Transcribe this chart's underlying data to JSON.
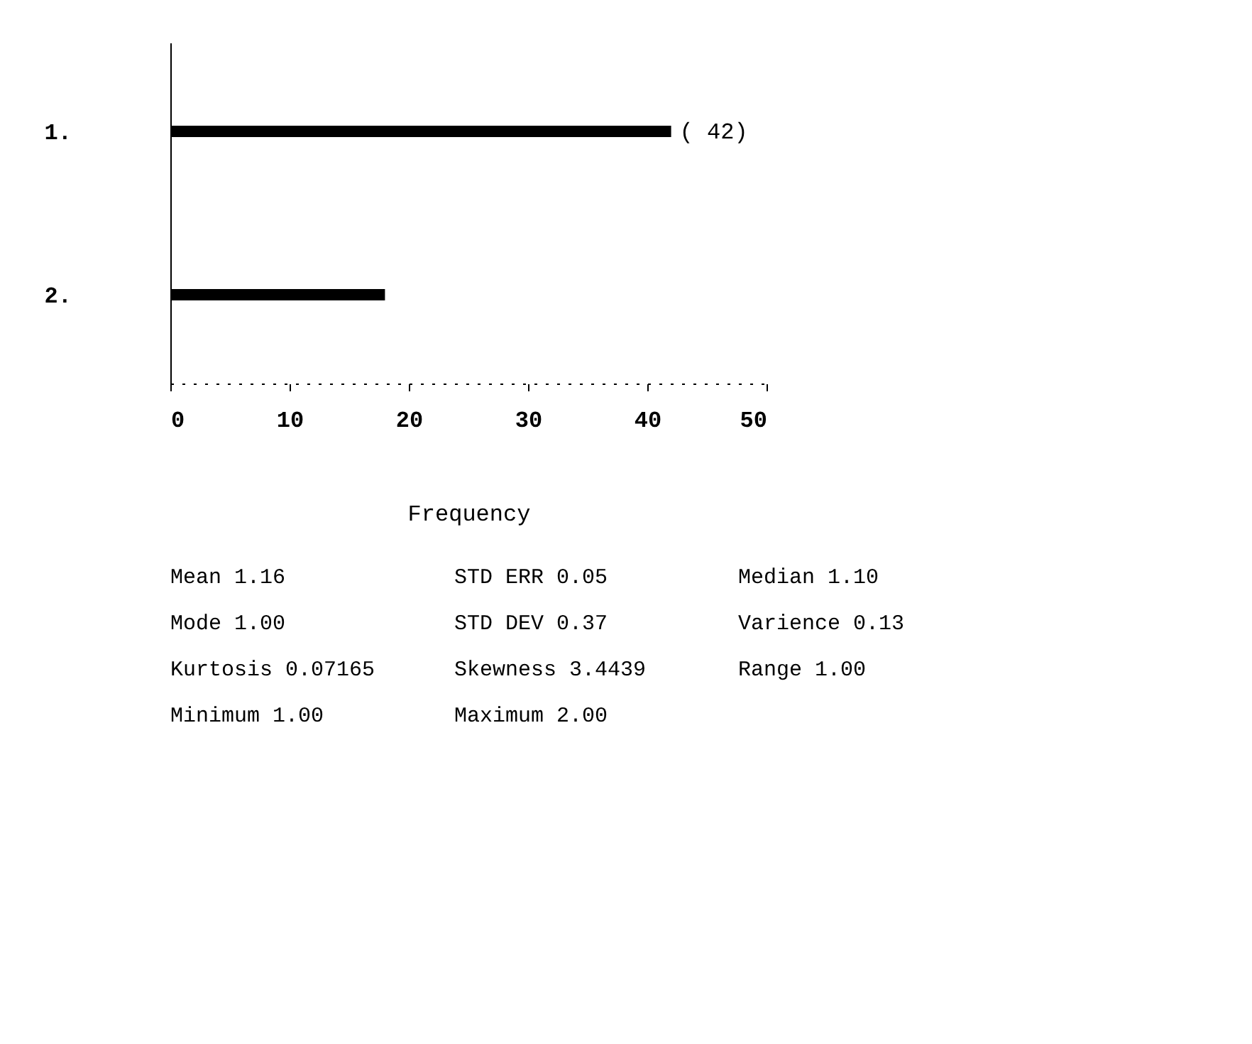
{
  "chart_data": {
    "type": "bar",
    "orientation": "horizontal",
    "categories": [
      "1.",
      "2."
    ],
    "values": [
      42,
      18
    ],
    "value_labels": [
      "( 42)",
      null
    ],
    "color": "#000000",
    "xlim": [
      0,
      50
    ],
    "xticks": [
      0,
      10,
      20,
      30,
      40,
      50
    ],
    "xlabel": "Frequency",
    "grid": false,
    "annotations": [
      "Mean 1.16",
      "STD ERR 0.05",
      "Median 1.10",
      "Mode 1.00",
      "STD DEV 0.37",
      "Varience 0.13",
      "Kurtosis 0.07165",
      "Skewness 3.4439",
      "Range 1.00",
      "Minimum 1.00",
      "Maximum 2.00"
    ]
  }
}
